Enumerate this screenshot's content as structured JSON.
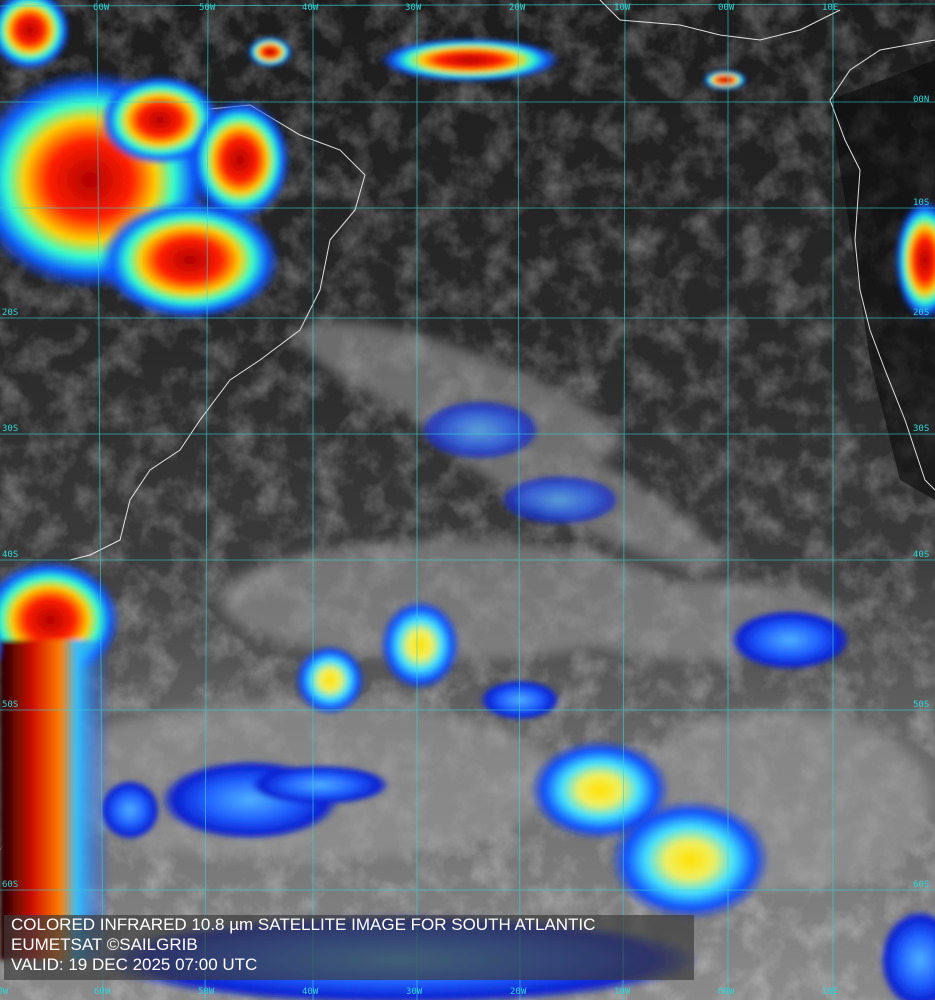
{
  "image": {
    "type": "colored infrared satellite image",
    "region": "South Atlantic",
    "colors": {
      "grid": "#2fd6d6",
      "coast": "#ffffff",
      "cold_cloud_red": "#c80000",
      "cold_cloud_yellow": "#f0e040",
      "cloud_blue": "#1040ff",
      "caption_text": "#ffffff"
    }
  },
  "longitude_labels_top": [
    "60W",
    "50W",
    "40W",
    "30W",
    "20W",
    "10W",
    "00W",
    "10E"
  ],
  "longitude_labels_bottom": [
    "70W",
    "60W",
    "50W",
    "40W",
    "30W",
    "20W",
    "10W",
    "00W",
    "10E"
  ],
  "latitude_labels_right": [
    "00N",
    "10S",
    "20S",
    "30S",
    "40S",
    "50S",
    "60S"
  ],
  "latitude_labels_left": [
    "20S",
    "30S",
    "40S",
    "50S",
    "60S"
  ],
  "caption": {
    "line1": "COLORED INFRARED 10.8 µm SATELLITE IMAGE FOR SOUTH ATLANTIC",
    "line2": "EUMETSAT ©SAILGRIB",
    "line3": "VALID:  19 DEC 2025 07:00 UTC"
  }
}
